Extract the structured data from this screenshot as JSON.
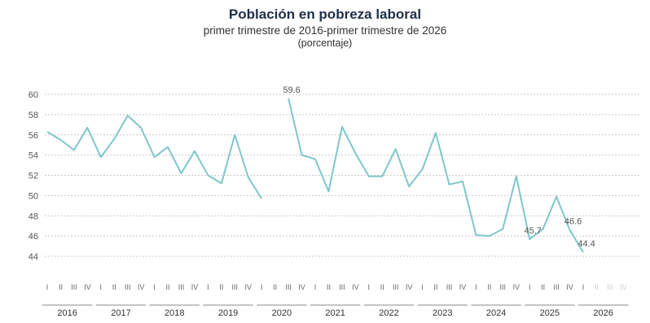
{
  "title": "Población en pobreza laboral",
  "subtitle": "primer trimestre de 2016-primer trimestre de 2026",
  "unit": "(porcentaje)",
  "colors": {
    "line": "#7fc6cc",
    "grid": "#c8c8c8",
    "axis": "#888888"
  },
  "chart_data": {
    "type": "line",
    "title": "Población en pobreza laboral",
    "subtitle": "primer trimestre de 2016-primer trimestre de 2026",
    "ylabel": "(porcentaje)",
    "ylim": [
      44,
      60
    ],
    "yticks": [
      44,
      46,
      48,
      50,
      52,
      54,
      56,
      58,
      60
    ],
    "grid": true,
    "quarter_labels": [
      "I",
      "II",
      "III",
      "IV"
    ],
    "years": [
      "2016",
      "2017",
      "2018",
      "2019",
      "2020",
      "2021",
      "2022",
      "2023",
      "2024",
      "2025",
      "2026"
    ],
    "segments": [
      {
        "x": [
          "2016-I",
          "2016-II",
          "2016-III",
          "2016-IV",
          "2017-I",
          "2017-II",
          "2017-III",
          "2017-IV",
          "2018-I",
          "2018-II",
          "2018-III",
          "2018-IV",
          "2019-I",
          "2019-II",
          "2019-III",
          "2019-IV",
          "2020-I"
        ],
        "y": [
          56.3,
          55.5,
          54.5,
          56.7,
          53.8,
          55.6,
          57.9,
          56.7,
          53.8,
          54.8,
          52.2,
          54.4,
          52.0,
          51.2,
          56.0,
          51.8,
          49.7
        ]
      },
      {
        "x": [
          "2020-III",
          "2020-IV",
          "2021-I",
          "2021-II",
          "2021-III",
          "2021-IV",
          "2022-I",
          "2022-II",
          "2022-III",
          "2022-IV",
          "2023-I",
          "2023-II",
          "2023-III",
          "2023-IV",
          "2024-I",
          "2024-II",
          "2024-III",
          "2024-IV",
          "2025-I",
          "2025-II",
          "2025-III",
          "2025-IV",
          "2026-I"
        ],
        "y": [
          59.6,
          54.0,
          53.6,
          50.4,
          56.8,
          54.2,
          51.9,
          51.9,
          54.6,
          50.9,
          52.6,
          56.2,
          51.1,
          51.4,
          46.1,
          46.0,
          46.7,
          51.9,
          45.7,
          46.7,
          49.9,
          46.6,
          44.4
        ]
      }
    ],
    "data_labels": [
      {
        "x": "2020-III",
        "y": 59.6,
        "text": "59.6"
      },
      {
        "x": "2025-I",
        "y": 45.7,
        "text": "45.7"
      },
      {
        "x": "2025-IV",
        "y": 46.6,
        "text": "46.6"
      },
      {
        "x": "2026-I",
        "y": 44.4,
        "text": "44.4"
      }
    ]
  }
}
